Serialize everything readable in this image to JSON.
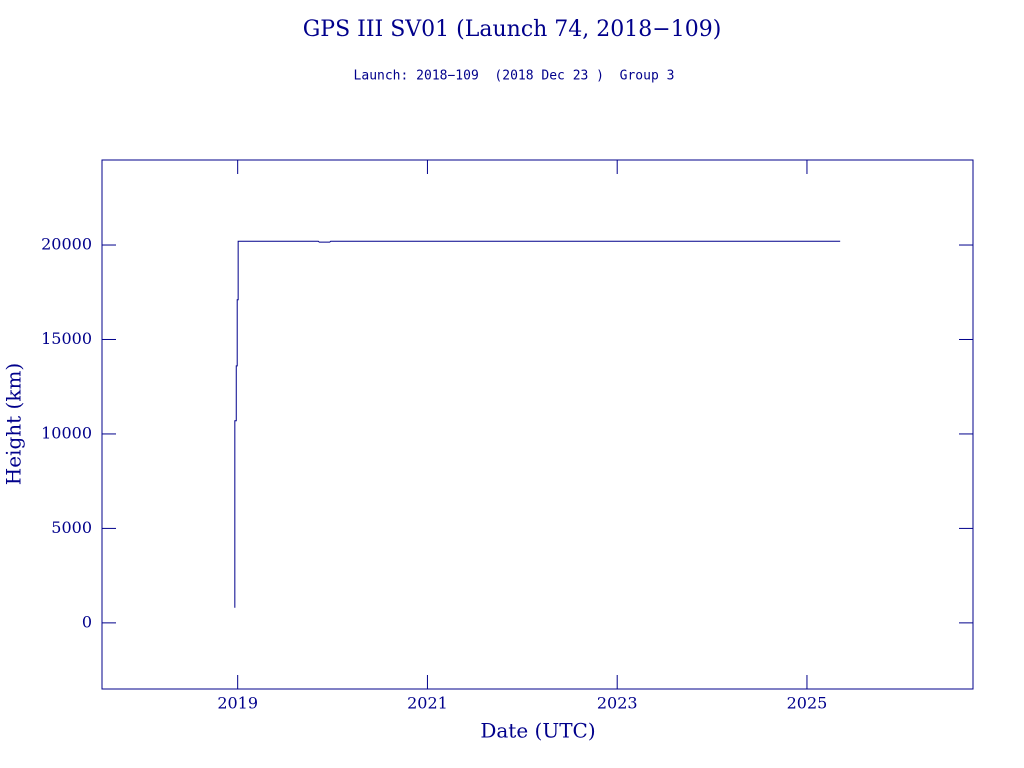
{
  "chart_data": {
    "type": "line",
    "title": "GPS III SV01 (Launch 74, 2018−109)",
    "subtitle": "Launch: 2018−109  (2018 Dec 23 )  Group 3",
    "x_label": "Date (UTC)",
    "y_label": "Height (km)",
    "color": "#00008b",
    "x": [
      2018.97,
      2018.97,
      2018.985,
      2018.985,
      2018.995,
      2018.995,
      2019.005,
      2019.005,
      2019.85,
      2019.86,
      2019.97,
      2019.98,
      2025.35
    ],
    "values": [
      800,
      10700,
      10700,
      13600,
      13600,
      17100,
      17100,
      20200,
      20200,
      20150,
      20150,
      20200,
      20200
    ],
    "xlim": [
      2017.57,
      2026.75
    ],
    "xticks": [
      2019,
      2021,
      2023,
      2025
    ],
    "ylim": [
      -3500,
      24500
    ],
    "yticks": [
      0,
      5000,
      10000,
      15000,
      20000
    ]
  }
}
